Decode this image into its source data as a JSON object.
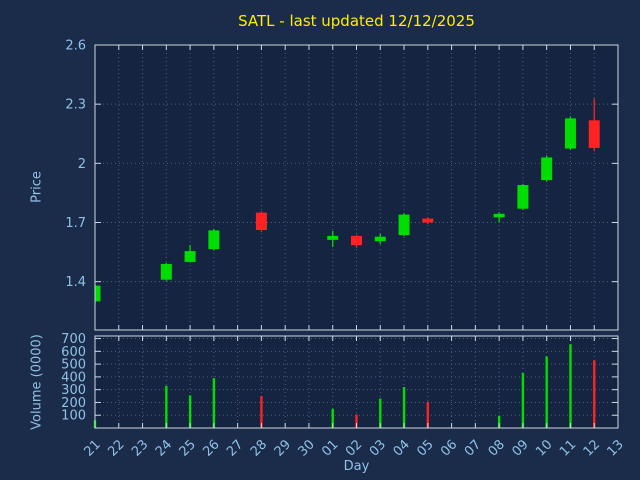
{
  "chart_data": {
    "type": "candlestick",
    "title": "SATL - last updated 12/12/2025",
    "xlabel": "Day",
    "price_ylabel": "Price",
    "volume_ylabel": "Volume (0000)",
    "price_ylim": [
      1.155,
      2.6
    ],
    "volume_ylim": [
      0,
      720
    ],
    "grid": "dotted",
    "legend_position": "none",
    "price_ticks": [
      {
        "v": 1.4,
        "label": "1.4"
      },
      {
        "v": 1.7,
        "label": "1.7"
      },
      {
        "v": 2.0,
        "label": "2"
      },
      {
        "v": 2.3,
        "label": "2.3"
      },
      {
        "v": 2.6,
        "label": "2.6"
      }
    ],
    "volume_ticks": [
      {
        "v": 100,
        "label": "100"
      },
      {
        "v": 200,
        "label": "200"
      },
      {
        "v": 300,
        "label": "300"
      },
      {
        "v": 400,
        "label": "400"
      },
      {
        "v": 500,
        "label": "500"
      },
      {
        "v": 600,
        "label": "600"
      },
      {
        "v": 700,
        "label": "700"
      }
    ],
    "categories": [
      "21",
      "22",
      "23",
      "24",
      "25",
      "26",
      "27",
      "28",
      "29",
      "30",
      "01",
      "02",
      "03",
      "04",
      "05",
      "06",
      "07",
      "08",
      "09",
      "10",
      "11",
      "12",
      "13"
    ],
    "candles": [
      {
        "day": "21",
        "open": 1.3,
        "high": 1.385,
        "low": 1.29,
        "close": 1.38,
        "volume": 60
      },
      {
        "day": "24",
        "open": 1.41,
        "high": 1.495,
        "low": 1.405,
        "close": 1.49,
        "volume": 330
      },
      {
        "day": "25",
        "open": 1.5,
        "high": 1.585,
        "low": 1.497,
        "close": 1.555,
        "volume": 255
      },
      {
        "day": "26",
        "open": 1.565,
        "high": 1.668,
        "low": 1.558,
        "close": 1.66,
        "volume": 390
      },
      {
        "day": "28",
        "open": 1.75,
        "high": 1.757,
        "low": 1.652,
        "close": 1.662,
        "volume": 250
      },
      {
        "day": "01",
        "open": 1.612,
        "high": 1.657,
        "low": 1.576,
        "close": 1.632,
        "volume": 150
      },
      {
        "day": "02",
        "open": 1.632,
        "high": 1.638,
        "low": 1.572,
        "close": 1.585,
        "volume": 105
      },
      {
        "day": "03",
        "open": 1.605,
        "high": 1.643,
        "low": 1.59,
        "close": 1.628,
        "volume": 230
      },
      {
        "day": "04",
        "open": 1.636,
        "high": 1.747,
        "low": 1.63,
        "close": 1.74,
        "volume": 320
      },
      {
        "day": "05",
        "open": 1.72,
        "high": 1.726,
        "low": 1.692,
        "close": 1.7,
        "volume": 205
      },
      {
        "day": "08",
        "open": 1.726,
        "high": 1.752,
        "low": 1.7,
        "close": 1.744,
        "volume": 95
      },
      {
        "day": "09",
        "open": 1.77,
        "high": 1.896,
        "low": 1.764,
        "close": 1.89,
        "volume": 430
      },
      {
        "day": "10",
        "open": 1.915,
        "high": 2.04,
        "low": 1.908,
        "close": 2.03,
        "volume": 560
      },
      {
        "day": "11",
        "open": 2.075,
        "high": 2.238,
        "low": 2.068,
        "close": 2.228,
        "volume": 655
      },
      {
        "day": "12",
        "open": 2.218,
        "high": 2.33,
        "low": 2.062,
        "close": 2.078,
        "volume": 530
      }
    ],
    "colors": {
      "up": "#00dd00",
      "down": "#ff2222",
      "title": "#ffee00",
      "axis_text": "#8fc1e8",
      "background": "#1b2c4a",
      "plot_bg": "#152440",
      "grid": "#4e5f78",
      "border": "#cfd8e3"
    }
  }
}
